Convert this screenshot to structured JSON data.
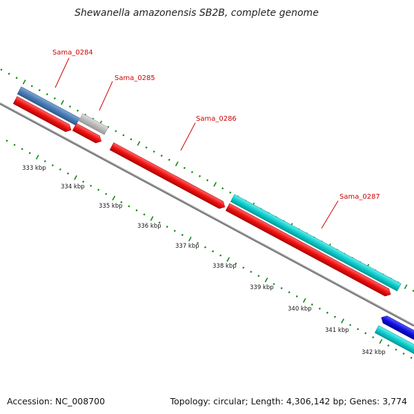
{
  "title": "Shewanella amazonensis SB2B, complete genome",
  "footer": {
    "accession": "Accession: NC_008700",
    "topology": "Topology: circular; Length: 4,306,142 bp; Genes: 3,774"
  },
  "colors": {
    "forward_gene": "#4477aa",
    "reverse_gene": "#ee1111",
    "other_gene": "#bbbbbb",
    "rna_gene": "#11cccc",
    "special_gene": "#1111dd",
    "backbone": "#808080",
    "tick": "#118811",
    "label_line": "#cc0000"
  },
  "genes": [
    {
      "name": "Sama_0284",
      "labeled": true
    },
    {
      "name": "Sama_0285",
      "labeled": true
    },
    {
      "name": "Sama_0286",
      "labeled": true
    },
    {
      "name": "Sama_0287",
      "labeled": true
    }
  ],
  "scale_labels": [
    "333 kbp",
    "334 kbp",
    "335 kbp",
    "336 kbp",
    "337 kbp",
    "338 kbp",
    "339 kbp",
    "340 kbp",
    "341 kbp",
    "342 kbp"
  ]
}
